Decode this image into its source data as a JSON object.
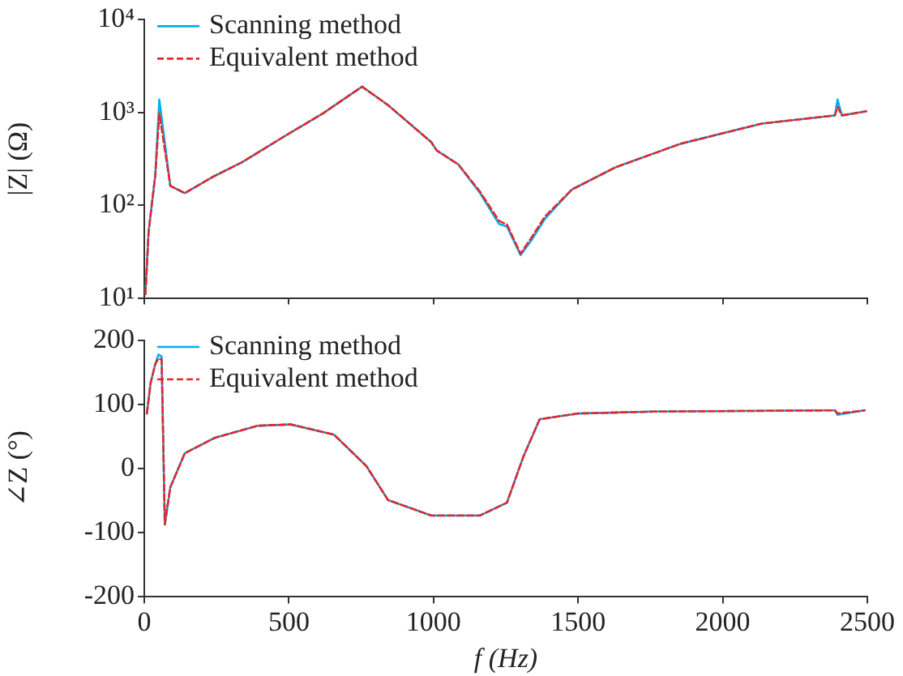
{
  "chart_data": [
    {
      "type": "line",
      "ylabel": "|Z| (Ω)",
      "log": "y",
      "grid": false,
      "legend": "top left",
      "tick_labels": "y",
      "marker": "none",
      "xlim": [
        0,
        2500
      ],
      "xticks": [
        0,
        500,
        1000,
        1500,
        2000,
        2500
      ],
      "ylim": [
        10,
        10000
      ],
      "yticks": [
        {
          "value": 10,
          "label": "10¹"
        },
        {
          "value": 100,
          "label": "10²"
        },
        {
          "value": 1000,
          "label": "10³"
        },
        {
          "value": 10000,
          "label": "10⁴"
        }
      ],
      "x": [
        4,
        15,
        38,
        52,
        90,
        140,
        234,
        337,
        487,
        618,
        753,
        843,
        992,
        1011,
        1086,
        1161,
        1226,
        1254,
        1301,
        1339,
        1386,
        1479,
        1629,
        1854,
        2135,
        2388,
        2397,
        2412,
        2496
      ],
      "series": [
        {
          "name": "Scanning method",
          "color": "#00b0f0",
          "line_style": "solid",
          "values": [
            11,
            52,
            210,
            1380,
            162,
            135,
            200,
            290,
            560,
            980,
            1900,
            1200,
            480,
            390,
            275,
            135,
            63,
            59,
            29,
            42,
            72,
            148,
            256,
            460,
            760,
            930,
            1380,
            930,
            1030
          ]
        },
        {
          "name": "Equivalent method",
          "color": "#e8262a",
          "line_style": "dashed",
          "values": [
            11,
            52,
            210,
            980,
            162,
            135,
            200,
            290,
            560,
            980,
            1900,
            1200,
            480,
            390,
            275,
            140,
            68,
            62,
            30,
            45,
            76,
            148,
            256,
            460,
            760,
            930,
            1150,
            930,
            1030
          ]
        }
      ]
    },
    {
      "type": "line",
      "xlabel": "f (Hz)",
      "ylabel": "∠Z (°)",
      "grid": false,
      "legend": "top left",
      "marker": "none",
      "xlim": [
        0,
        2500
      ],
      "xticks": [
        0,
        500,
        1000,
        1500,
        2000,
        2500
      ],
      "ylim": [
        -200,
        200
      ],
      "yticks": [
        -200,
        -100,
        0,
        100,
        200
      ],
      "x": [
        9,
        22,
        38,
        49,
        60,
        71,
        90,
        140,
        243,
        393,
        506,
        656,
        768,
        843,
        992,
        1161,
        1254,
        1311,
        1367,
        1498,
        1760,
        2388,
        2397,
        2491
      ],
      "series": [
        {
          "name": "Scanning method",
          "color": "#00b0f0",
          "line_style": "solid",
          "values": [
            86,
            134,
            163,
            178,
            175,
            -87,
            -29,
            24,
            48,
            67,
            69,
            53,
            4,
            -49,
            -73,
            -73,
            -53,
            19,
            77,
            86,
            89,
            91,
            84,
            91
          ]
        },
        {
          "name": "Equivalent method",
          "color": "#e8262a",
          "line_style": "dashed",
          "values": [
            86,
            134,
            163,
            172,
            170,
            -87,
            -29,
            24,
            48,
            67,
            69,
            53,
            4,
            -49,
            -73,
            -73,
            -53,
            19,
            77,
            86,
            89,
            91,
            86,
            91
          ]
        }
      ]
    }
  ]
}
